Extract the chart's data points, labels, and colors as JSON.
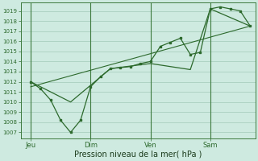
{
  "xlabel": "Pression niveau de la mer( hPa )",
  "background_color": "#ceeae0",
  "grid_color": "#aacfbf",
  "line_color": "#2d6a2d",
  "vline_color": "#3d7a3d",
  "yticks": [
    1007,
    1008,
    1009,
    1010,
    1011,
    1012,
    1013,
    1014,
    1015,
    1016,
    1017,
    1018,
    1019
  ],
  "ylim_low": 1006.4,
  "ylim_high": 1019.8,
  "day_labels": [
    "Jeu",
    "Dim",
    "Ven",
    "Sam"
  ],
  "day_positions": [
    0,
    48,
    96,
    144
  ],
  "xlim_low": -8,
  "xlim_high": 180,
  "series1_x": [
    0,
    8,
    16,
    24,
    32,
    40,
    48,
    56,
    64,
    72,
    80,
    88,
    96,
    104,
    112,
    120,
    128,
    136,
    144,
    152,
    160,
    168,
    176
  ],
  "series1_y": [
    1012.0,
    1011.3,
    1010.2,
    1008.2,
    1007.0,
    1008.2,
    1011.5,
    1012.5,
    1013.3,
    1013.4,
    1013.5,
    1013.8,
    1014.0,
    1015.5,
    1015.9,
    1016.3,
    1014.7,
    1014.9,
    1019.2,
    1019.4,
    1019.2,
    1019.0,
    1017.5
  ],
  "series2_x": [
    0,
    32,
    64,
    96,
    128,
    144,
    176
  ],
  "series2_y": [
    1012.0,
    1010.0,
    1013.3,
    1013.8,
    1013.2,
    1019.2,
    1017.5
  ],
  "series3_x": [
    0,
    176
  ],
  "series3_y": [
    1011.5,
    1017.5
  ]
}
